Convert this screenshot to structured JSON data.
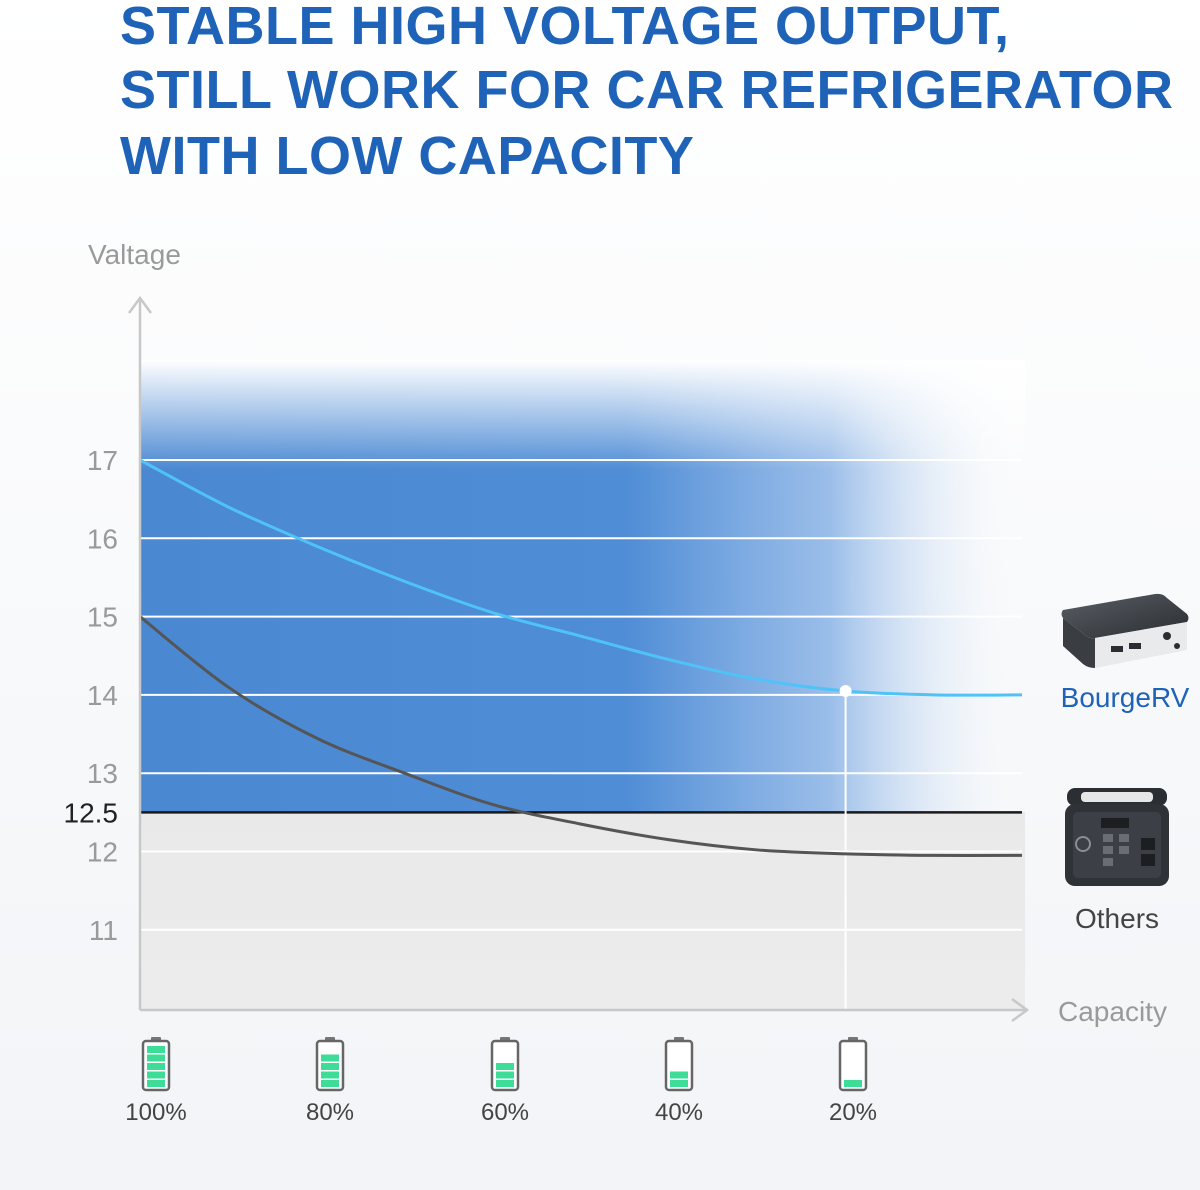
{
  "headline": {
    "line1": "STABLE HIGH VOLTAGE OUTPUT,",
    "line2": "STILL WORK FOR CAR REFRIGERATOR",
    "line3": "WITH LOW CAPACITY"
  },
  "chart_data": {
    "type": "line",
    "title": "STABLE HIGH VOLTAGE OUTPUT, STILL WORK FOR CAR REFRIGERATOR WITH LOW CAPACITY",
    "ylabel": "Valtage",
    "xlabel": "Capacity",
    "y_ticks": [
      "17",
      "16",
      "15",
      "14",
      "13",
      "12.5",
      "12",
      "11"
    ],
    "y_tick_values": [
      17,
      16,
      15,
      14,
      13,
      12.5,
      12,
      11
    ],
    "ylim": [
      10,
      17
    ],
    "x_categories": [
      "100%",
      "80%",
      "60%",
      "40%",
      "20%"
    ],
    "x_values": [
      100,
      80,
      60,
      40,
      20
    ],
    "threshold": 12.5,
    "series": [
      {
        "name": "BourgeRV",
        "x": [
          100,
          90,
          80,
          70,
          60,
          50,
          40,
          30,
          20,
          10,
          0
        ],
        "y": [
          17.0,
          16.4,
          15.9,
          15.45,
          15.05,
          14.75,
          14.45,
          14.2,
          14.05,
          14.0,
          14.0
        ],
        "color": "#4fc3f7"
      },
      {
        "name": "Others",
        "x": [
          100,
          90,
          80,
          70,
          60,
          50,
          40,
          30,
          20,
          10,
          0
        ],
        "y": [
          15.0,
          14.1,
          13.45,
          13.0,
          12.6,
          12.35,
          12.15,
          12.02,
          11.97,
          11.95,
          11.95
        ],
        "color": "#555555"
      }
    ],
    "marker": {
      "x": 20,
      "y": 14.05
    },
    "battery_levels": [
      5,
      4,
      3,
      2,
      1
    ]
  },
  "colors": {
    "headline": "#1e63b8",
    "blue_fill": "#4a88d2",
    "bourge_line": "#4fc3f7",
    "others_line": "#555555",
    "battery_green": "#3ddc97",
    "axis_gray": "#c8c8c8",
    "tick_gray": "#9a9a9a",
    "brand_blue": "#1e63b8"
  },
  "icons": {
    "bourge_product": "power-bank-icon",
    "others_product": "portable-power-station-icon",
    "battery": "battery-icon"
  }
}
